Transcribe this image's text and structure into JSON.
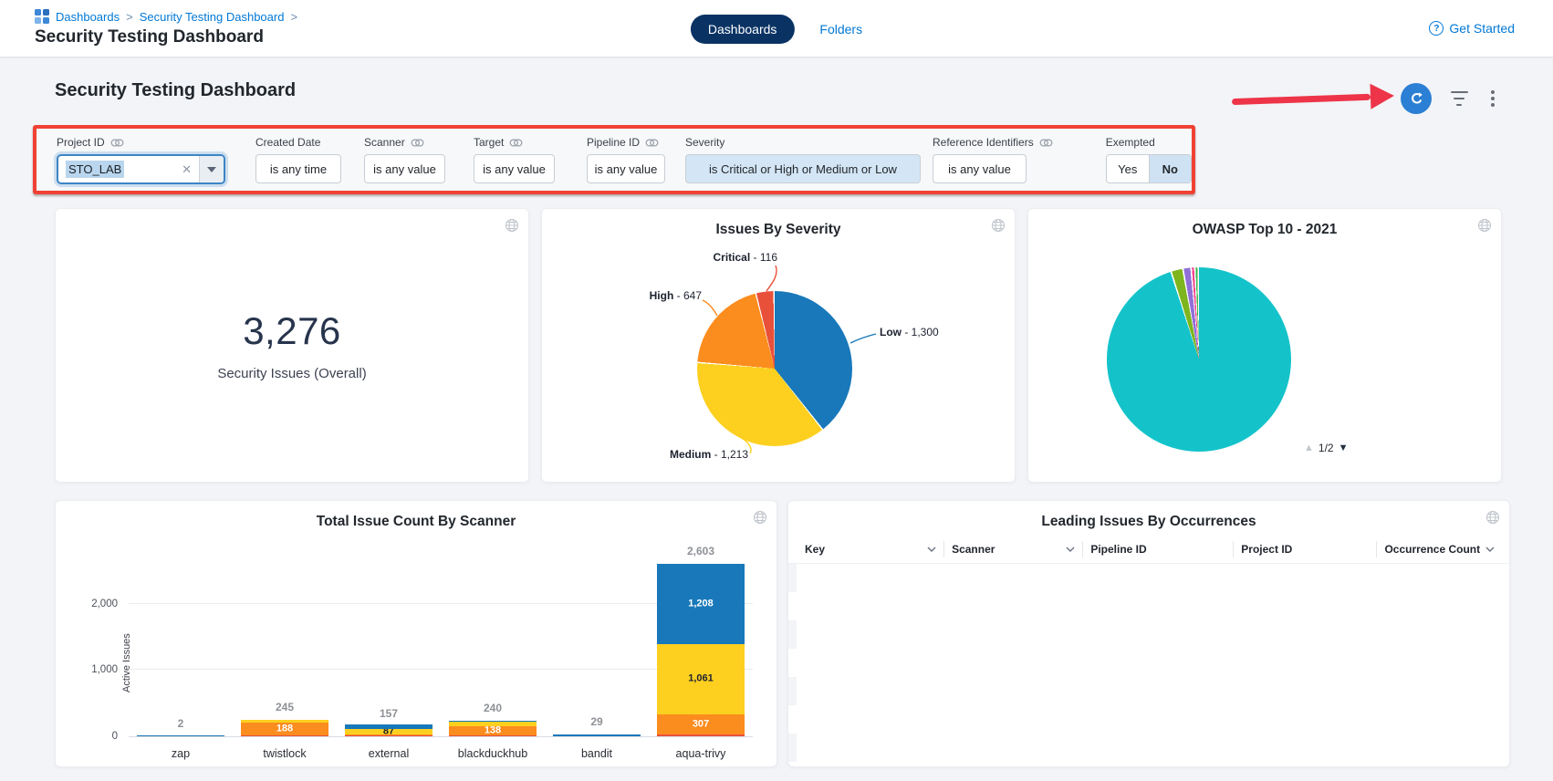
{
  "topbar": {
    "breadcrumb": {
      "items": [
        "Dashboards",
        "Security Testing Dashboard"
      ],
      "separator": ">"
    },
    "page_title": "Security Testing Dashboard",
    "tabs": [
      {
        "label": "Dashboards",
        "active": true
      },
      {
        "label": "Folders",
        "active": false
      }
    ],
    "get_started": "Get Started",
    "help_glyph": "?"
  },
  "dashboard": {
    "title": "Security Testing Dashboard",
    "colors": {
      "accent_blue": "#0278d5",
      "refresh_button": "#2b7fd4",
      "navy_pill": "#0a3364",
      "annotation_red": "#ef4134"
    }
  },
  "annotations": {
    "box_color": "#ef4134",
    "arrow_color": "#ee3448"
  },
  "filters": {
    "project_id": {
      "label": "Project ID",
      "value": "STO_LAB",
      "clear_glyph": "✕"
    },
    "created_date": {
      "label": "Created Date",
      "value": "is any time"
    },
    "scanner": {
      "label": "Scanner",
      "value": "is any value"
    },
    "target": {
      "label": "Target",
      "value": "is any value"
    },
    "pipeline_id": {
      "label": "Pipeline ID",
      "value": "is any value"
    },
    "severity": {
      "label": "Severity",
      "value": "is Critical or High or Medium or Low"
    },
    "reference_identifiers": {
      "label": "Reference Identifiers",
      "value": "is any value"
    },
    "exempted": {
      "label": "Exempted",
      "options": [
        "Yes",
        "No"
      ],
      "selected": "No"
    }
  },
  "chart_data": {
    "overall_count": {
      "type": "metric",
      "value": 3276,
      "display": "3,276",
      "label": "Security Issues (Overall)"
    },
    "severity_pie": {
      "type": "pie",
      "title": "Issues By Severity",
      "gap_deg": 1,
      "callout_separator": " - ",
      "slices": [
        {
          "name": "Low",
          "value": 1300,
          "display": "1,300",
          "color": "#1878ba"
        },
        {
          "name": "Medium",
          "value": 1213,
          "display": "1,213",
          "color": "#fdd020"
        },
        {
          "name": "High",
          "value": 647,
          "display": "647",
          "color": "#fb8c1e"
        },
        {
          "name": "Critical",
          "value": 116,
          "display": "116",
          "color": "#e8503a"
        }
      ]
    },
    "owasp_pie": {
      "type": "pie",
      "title": "OWASP Top 10 - 2021",
      "gap_deg": 1,
      "slices": [
        {
          "name": "teal-slice",
          "value": 2498,
          "color": "#14c3ca"
        },
        {
          "name": "olive-slice",
          "value": 48,
          "color": "#7eb51e"
        },
        {
          "name": "purple-slice",
          "value": 30,
          "color": "#9070d8"
        },
        {
          "name": "magenta-slice",
          "value": 10,
          "color": "#f5428c"
        },
        {
          "name": "green-slice",
          "value": 8,
          "color": "#3cb54a"
        }
      ],
      "pagination": {
        "up": "▲",
        "label": "1/2",
        "down": "▼"
      }
    },
    "scanner_bars": {
      "type": "bar",
      "stacked": true,
      "title": "Total Issue Count By Scanner",
      "ylabel": "Active Issues",
      "ymax": 2700,
      "grid": true,
      "yticks": [
        {
          "label": "0",
          "value": 0
        },
        {
          "label": "1,000",
          "value": 1000
        },
        {
          "label": "2,000",
          "value": 2000
        }
      ],
      "bars": [
        {
          "category": "zap",
          "total_label": "2",
          "segments": [
            {
              "name": "Low",
              "value": 2,
              "color": "#1878ba"
            }
          ]
        },
        {
          "category": "twistlock",
          "total_label": "245",
          "segments": [
            {
              "name": "Critical",
              "value": 12,
              "color": "#e8503a"
            },
            {
              "name": "High",
              "value": 188,
              "color": "#fb8c1e",
              "label": "188",
              "label_color": "#ffffff"
            },
            {
              "name": "Medium",
              "value": 45,
              "color": "#fdd020"
            }
          ]
        },
        {
          "category": "external",
          "total_label": "157",
          "segments": [
            {
              "name": "Critical",
              "value": 4,
              "color": "#e8503a"
            },
            {
              "name": "High",
              "value": 8,
              "color": "#fb8c1e"
            },
            {
              "name": "Medium",
              "value": 87,
              "color": "#fdd020",
              "label": "87",
              "label_color": "#1d2230"
            },
            {
              "name": "Low",
              "value": 58,
              "color": "#1878ba"
            }
          ]
        },
        {
          "category": "blackduckhub",
          "total_label": "240",
          "segments": [
            {
              "name": "Critical",
              "value": 18,
              "color": "#e8503a"
            },
            {
              "name": "High",
              "value": 138,
              "color": "#fb8c1e",
              "label": "138",
              "label_color": "#ffffff"
            },
            {
              "name": "Medium",
              "value": 60,
              "color": "#fdd020"
            },
            {
              "name": "Low",
              "value": 24,
              "color": "#1878ba"
            }
          ]
        },
        {
          "category": "bandit",
          "total_label": "29",
          "segments": [
            {
              "name": "Low",
              "value": 29,
              "color": "#1878ba"
            }
          ]
        },
        {
          "category": "aqua-trivy",
          "total_label": "2,603",
          "segments": [
            {
              "name": "Critical",
              "value": 27,
              "color": "#e8503a"
            },
            {
              "name": "High",
              "value": 307,
              "color": "#fb8c1e",
              "label": "307",
              "label_color": "#ffffff"
            },
            {
              "name": "Medium",
              "value": 1061,
              "color": "#fdd020",
              "label": "1,061",
              "label_color": "#1d2230"
            },
            {
              "name": "Low",
              "value": 1208,
              "color": "#1878ba",
              "label": "1,208",
              "label_color": "#ffffff"
            }
          ]
        }
      ]
    },
    "occurrences_table": {
      "type": "table",
      "title": "Leading Issues By Occurrences",
      "columns": [
        {
          "label": "Key",
          "sortable": true
        },
        {
          "label": "Scanner",
          "sortable": true
        },
        {
          "label": "Pipeline ID",
          "sortable": false
        },
        {
          "label": "Project ID",
          "sortable": false
        },
        {
          "label": "Occurrence Count",
          "sortable": true
        }
      ],
      "rows": []
    }
  }
}
